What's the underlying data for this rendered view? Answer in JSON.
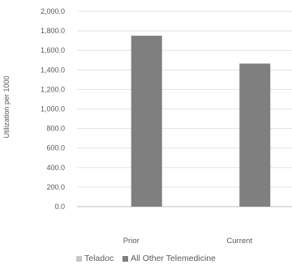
{
  "chart_data": {
    "type": "bar",
    "ylabel": "Utilization per 1000",
    "categories": [
      "Prior",
      "Current"
    ],
    "series": [
      {
        "name": "Teladoc",
        "color": "#c8c8c8",
        "values": [
          0,
          0
        ]
      },
      {
        "name": "All Other Telemedicine",
        "color": "#7f7f7f",
        "values": [
          1750,
          1465
        ]
      }
    ],
    "ylim": [
      0,
      2000
    ],
    "yticks": [
      0,
      200,
      400,
      600,
      800,
      1000,
      1200,
      1400,
      1600,
      1800,
      2000
    ],
    "ytick_labels": [
      "0.0",
      "200.0",
      "400.0",
      "600.0",
      "800.0",
      "1,000.0",
      "1,200.0",
      "1,400.0",
      "1,600.0",
      "1,800.0",
      "2,000.0"
    ],
    "grid": true,
    "legend_position": "bottom"
  }
}
